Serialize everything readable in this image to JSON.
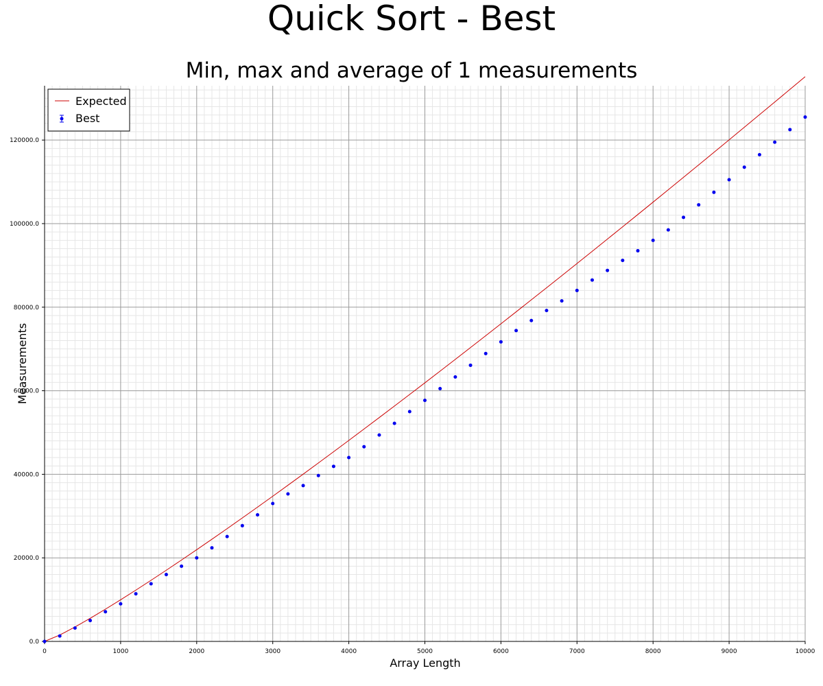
{
  "chart_data": {
    "type": "scatter",
    "title": "Quick Sort - Best",
    "subtitle": "Min, max and average of 1 measurements",
    "xlabel": "Array Length",
    "ylabel": "Measurements",
    "xlim": [
      0,
      10000
    ],
    "ylim": [
      0,
      133000
    ],
    "x_ticks": [
      0,
      1000,
      2000,
      3000,
      4000,
      5000,
      6000,
      7000,
      8000,
      9000,
      10000
    ],
    "x_tick_labels": [
      "0",
      "1000",
      "2000",
      "3000",
      "4000",
      "5000",
      "6000",
      "7000",
      "8000",
      "9000",
      "10000"
    ],
    "y_ticks": [
      0,
      20000,
      40000,
      60000,
      80000,
      100000,
      120000
    ],
    "y_tick_labels": [
      "0.0",
      "20000.0",
      "40000.0",
      "60000.0",
      "80000.0",
      "100000.0",
      "120000.0"
    ],
    "grid": true,
    "legend_position": "top-left",
    "series": [
      {
        "name": "Expected",
        "kind": "line",
        "color": "#cc0000",
        "x": [
          0,
          200,
          400,
          600,
          800,
          1000,
          1200,
          1400,
          1600,
          1800,
          2000,
          2200,
          2400,
          2600,
          2800,
          3000,
          3200,
          3400,
          3600,
          3800,
          4000,
          4200,
          4400,
          4600,
          4800,
          5000,
          5200,
          5400,
          5600,
          5800,
          6000,
          6200,
          6400,
          6600,
          6800,
          7000,
          7200,
          7400,
          7600,
          7800,
          8000,
          8200,
          8400,
          8600,
          8800,
          9000,
          9200,
          9400,
          9600,
          9800,
          10000
        ],
        "y": [
          0,
          1530,
          3458,
          5538,
          7717,
          9966,
          12275,
          14634,
          17036,
          19476,
          21951,
          24457,
          26993,
          29555,
          32142,
          34752,
          37384,
          40037,
          42709,
          45400,
          48109,
          50834,
          53576,
          56334,
          59106,
          61893,
          64694,
          67508,
          70335,
          73174,
          76026,
          78889,
          81764,
          84650,
          87546,
          90454,
          93371,
          96299,
          99236,
          102183,
          105139,
          108104,
          111078,
          114061,
          117052,
          120052,
          123059,
          126075,
          129099,
          132130,
          135169
        ]
      },
      {
        "name": "Best",
        "kind": "points",
        "color": "#0000ee",
        "x": [
          0,
          200,
          400,
          600,
          800,
          1000,
          1200,
          1400,
          1600,
          1800,
          2000,
          2200,
          2400,
          2600,
          2800,
          3000,
          3200,
          3400,
          3600,
          3800,
          4000,
          4200,
          4400,
          4600,
          4800,
          5000,
          5200,
          5400,
          5600,
          5800,
          6000,
          6200,
          6400,
          6600,
          6800,
          7000,
          7200,
          7400,
          7600,
          7800,
          8000,
          8200,
          8400,
          8600,
          8800,
          9000,
          9200,
          9400,
          9600,
          9800,
          10000
        ],
        "y": [
          0,
          1300,
          3200,
          5000,
          7100,
          9000,
          11400,
          13800,
          16000,
          18000,
          20000,
          22400,
          25100,
          27700,
          30300,
          33000,
          35300,
          37300,
          39700,
          41900,
          44000,
          46600,
          49400,
          52200,
          55000,
          57700,
          60500,
          63300,
          66100,
          68900,
          71700,
          74400,
          76800,
          79200,
          81500,
          84000,
          86500,
          88800,
          91200,
          93500,
          96000,
          98500,
          101500,
          104500,
          107500,
          110500,
          113500,
          116500,
          119500,
          122500,
          125500
        ]
      }
    ]
  }
}
